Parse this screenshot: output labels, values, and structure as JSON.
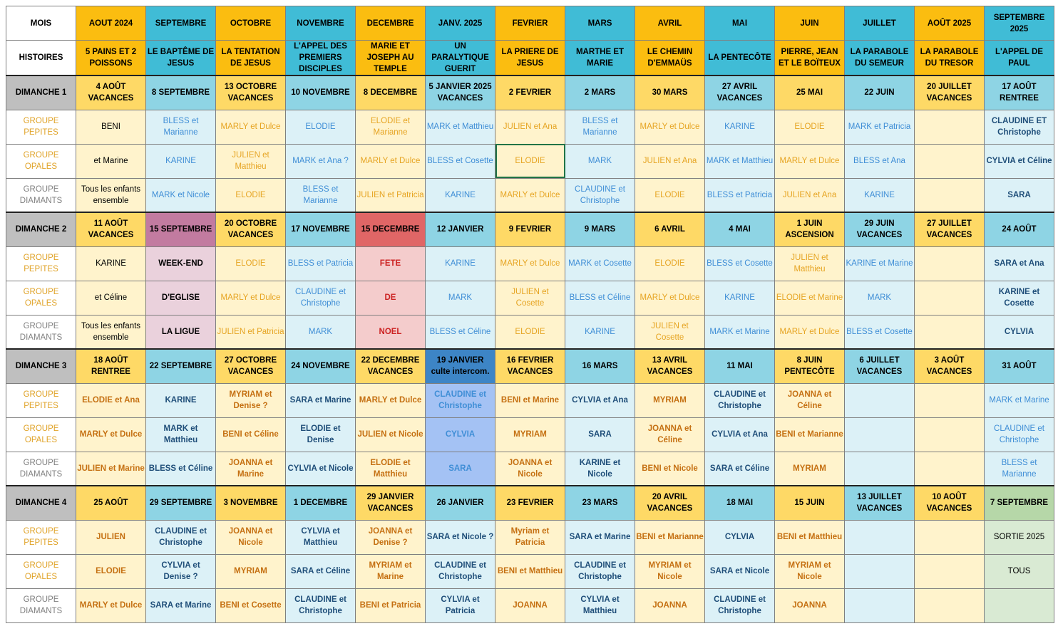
{
  "columns": [
    {
      "mois": "AOUT 2024",
      "histoire": "5 PAINS ET 2 POISSONS",
      "color": "or"
    },
    {
      "mois": "SEPTEMBRE",
      "histoire": "LE BAPTÊME DE JESUS",
      "color": "bl"
    },
    {
      "mois": "OCTOBRE",
      "histoire": "LA TENTATION DE JESUS",
      "color": "or"
    },
    {
      "mois": "NOVEMBRE",
      "histoire": "L'APPEL DES PREMIERS DISCIPLES",
      "color": "bl"
    },
    {
      "mois": "DECEMBRE",
      "histoire": "MARIE ET JOSEPH AU TEMPLE",
      "color": "or"
    },
    {
      "mois": "JANV. 2025",
      "histoire": "UN PARALYTIQUE GUERIT",
      "color": "bl"
    },
    {
      "mois": "FEVRIER",
      "histoire": "LA PRIERE DE JESUS",
      "color": "or"
    },
    {
      "mois": "MARS",
      "histoire": "MARTHE ET MARIE",
      "color": "bl"
    },
    {
      "mois": "AVRIL",
      "histoire": "LE CHEMIN D'EMMAÜS",
      "color": "or"
    },
    {
      "mois": "MAI",
      "histoire": "LA PENTECÔTE",
      "color": "bl"
    },
    {
      "mois": "JUIN",
      "histoire": "PIERRE, JEAN ET LE BOÏTEUX",
      "color": "or"
    },
    {
      "mois": "JUILLET",
      "histoire": "LA PARABOLE DU SEMEUR",
      "color": "bl"
    },
    {
      "mois": "AOÛT 2025",
      "histoire": "LA PARABOLE DU TRESOR",
      "color": "or"
    },
    {
      "mois": "SEPTEMBRE 2025",
      "histoire": "L'APPEL DE PAUL",
      "color": "bl"
    }
  ],
  "labels": {
    "mois": "MOIS",
    "histoires": "HISTOIRES",
    "pepites": "GROUPE PEPITES",
    "opales": "GROUPE OPALES",
    "diamants": "GROUPE DIAMANTS"
  },
  "sundays": [
    {
      "label": "DIMANCHE 1",
      "dates": [
        "4 AOÛT VACANCES",
        "8 SEPTEMBRE",
        "13 OCTOBRE VACANCES",
        "10 NOVEMBRE",
        "8 DECEMBRE",
        "5 JANVIER 2025 VACANCES",
        "2 FEVRIER",
        "2 MARS",
        "30 MARS",
        "27 AVRIL VACANCES",
        "25 MAI",
        "22 JUIN",
        "20 JUILLET VACANCES",
        "17 AOÛT RENTREE"
      ],
      "pepites": [
        "BENI",
        "BLESS et Marianne",
        "MARLY et Dulce",
        "ELODIE",
        "ELODIE et Marianne",
        "MARK et Matthieu",
        "JULIEN et Ana",
        "BLESS et Marianne",
        "MARLY et Dulce",
        "KARINE",
        "ELODIE",
        "MARK et Patricia",
        "",
        "CLAUDINE ET Christophe"
      ],
      "opales": [
        "et Marine",
        "KARINE",
        "JULIEN et Matthieu",
        "MARK et Ana ?",
        "MARLY et Dulce",
        "BLESS et Cosette",
        "ELODIE",
        "MARK",
        "JULIEN et Ana",
        "MARK et Matthieu",
        "MARLY et Dulce",
        "BLESS et Ana",
        "",
        "CYLVIA et Céline"
      ],
      "diamants": [
        "Tous les enfants ensemble",
        "MARK et Nicole",
        "ELODIE",
        "BLESS et Marianne",
        "JULIEN et Patricia",
        "KARINE",
        "MARLY et Dulce",
        "CLAUDINE et Christophe",
        "ELODIE",
        "BLESS et Patricia",
        "JULIEN et Ana",
        "KARINE",
        "",
        "SARA"
      ]
    },
    {
      "label": "DIMANCHE 2",
      "dates": [
        "11 AOÛT VACANCES",
        "15 SEPTEMBRE",
        "20 OCTOBRE VACANCES",
        "17 NOVEMBRE",
        "15 DECEMBRE",
        "12 JANVIER",
        "9 FEVRIER",
        "9 MARS",
        "6 AVRIL",
        "4 MAI",
        "1 JUIN ASCENSION",
        "29 JUIN VACANCES",
        "27 JUILLET VACANCES",
        "24 AOÛT"
      ],
      "pepites": [
        "KARINE",
        "WEEK-END",
        "ELODIE",
        "BLESS et Patricia",
        "FETE",
        "KARINE",
        "MARLY et Dulce",
        "MARK et Cosette",
        "ELODIE",
        "BLESS et Cosette",
        "JULIEN et Matthieu",
        "KARINE et Marine",
        "",
        "SARA et Ana"
      ],
      "opales": [
        "et Céline",
        "D'EGLISE",
        "MARLY et Dulce",
        "CLAUDINE et Christophe",
        "DE",
        "MARK",
        "JULIEN et Cosette",
        "BLESS et Céline",
        "MARLY et Dulce",
        "KARINE",
        "ELODIE et Marine",
        "MARK",
        "",
        "KARINE et Cosette"
      ],
      "diamants": [
        "Tous les enfants ensemble",
        "LA LIGUE",
        "JULIEN et Patricia",
        "MARK",
        "NOEL",
        "BLESS et Céline",
        "ELODIE",
        "KARINE",
        "JULIEN et Cosette",
        "MARK et Marine",
        "MARLY et Dulce",
        "BLESS et Cosette",
        "",
        "CYLVIA"
      ]
    },
    {
      "label": "DIMANCHE 3",
      "dates": [
        "18 AOÛT RENTREE",
        "22 SEPTEMBRE",
        "27 OCTOBRE VACANCES",
        "24 NOVEMBRE",
        "22 DECEMBRE VACANCES",
        "19 JANVIER culte intercom.",
        "16 FEVRIER VACANCES",
        "16 MARS",
        "13 AVRIL VACANCES",
        "11 MAI",
        "8 JUIN PENTECÔTE",
        "6 JUILLET VACANCES",
        "3 AOÛT VACANCES",
        "31 AOÛT"
      ],
      "pepites": [
        "ELODIE et Ana",
        "KARINE",
        "MYRIAM et Denise ?",
        "SARA et Marine",
        "MARLY et Dulce",
        "CLAUDINE et Christophe",
        "BENI et Marine",
        "CYLVIA et Ana",
        "MYRIAM",
        "CLAUDINE et Christophe",
        "JOANNA et Céline",
        "",
        "",
        "MARK et Marine"
      ],
      "opales": [
        "MARLY et Dulce",
        "MARK et Matthieu",
        "BENI et Céline",
        "ELODIE et Denise",
        "JULIEN et Nicole",
        "CYLVIA",
        "MYRIAM",
        "SARA",
        "JOANNA et Céline",
        "CYLVIA et Ana",
        "BENI et Marianne",
        "",
        "",
        "CLAUDINE et Christophe"
      ],
      "diamants": [
        "JULIEN et Marine",
        "BLESS et Céline",
        "JOANNA et Marine",
        "CYLVIA et Nicole",
        "ELODIE et Matthieu",
        "SARA",
        "JOANNA et Nicole",
        "KARINE et Nicole",
        "BENI et Nicole",
        "SARA et Céline",
        "MYRIAM",
        "",
        "",
        "BLESS et Marianne"
      ]
    },
    {
      "label": "DIMANCHE 4",
      "dates": [
        "25 AOÛT",
        "29 SEPTEMBRE",
        "3 NOVEMBRE",
        "1 DECEMBRE",
        "29 JANVIER VACANCES",
        "26 JANVIER",
        "23 FEVRIER",
        "23 MARS",
        "20 AVRIL VACANCES",
        "18 MAI",
        "15 JUIN",
        "13 JUILLET VACANCES",
        "10 AOÛT VACANCES",
        "7 SEPTEMBRE"
      ],
      "pepites": [
        "JULIEN",
        "CLAUDINE et Christophe",
        "JOANNA et Nicole",
        "CYLVIA et Matthieu",
        "JOANNA et Denise ?",
        "SARA et Nicole ?",
        "Myriam et Patricia",
        "SARA et Marine",
        "BENI et Marianne",
        "CYLVIA",
        "BENI et Matthieu",
        "",
        "",
        "SORTIE 2025"
      ],
      "opales": [
        "ELODIE",
        "CYLVIA et Denise ?",
        "MYRIAM",
        "SARA et Céline",
        "MYRIAM et Marine",
        "CLAUDINE et Christophe",
        "BENI et Matthieu",
        "CLAUDINE et Christophe",
        "MYRIAM et Nicole",
        "SARA et Nicole",
        "MYRIAM et Nicole",
        "",
        "",
        "TOUS"
      ],
      "diamants": [
        "MARLY et Dulce",
        "SARA et Marine",
        "BENI et Cosette",
        "CLAUDINE et Christophe",
        "BENI et Patricia",
        "CYLVIA et Patricia",
        "JOANNA",
        "CYLVIA et Matthieu",
        "JOANNA",
        "CLAUDINE et Christophe",
        "JOANNA",
        "",
        "",
        ""
      ]
    }
  ],
  "colors": {
    "orange_header": "#fbbd10",
    "blue_header": "#40bcd6",
    "orange_date": "#fed966",
    "blue_date": "#8ed4e4",
    "orange_cell": "#fff3cc",
    "blue_cell": "#dcf1f7",
    "event_pink": "#c27ba0",
    "event_red": "#e06666",
    "culte_blue": "#3d85c6",
    "sortie_green": "#b6d7a8"
  }
}
